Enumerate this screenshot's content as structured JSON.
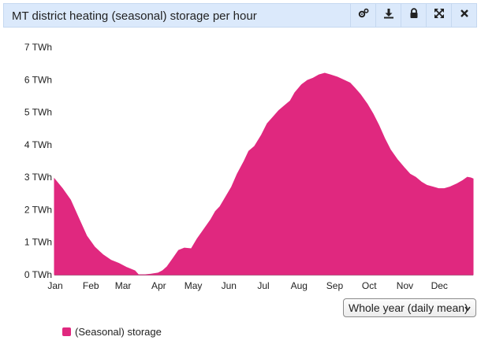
{
  "panel": {
    "title": "MT district heating (seasonal) storage per hour",
    "tools": [
      {
        "name": "settings-icon"
      },
      {
        "name": "download-icon"
      },
      {
        "name": "lock-icon"
      },
      {
        "name": "expand-icon"
      },
      {
        "name": "close-icon"
      }
    ]
  },
  "controls": {
    "period_select": {
      "selected": "Whole year (daily mean)"
    }
  },
  "colors": {
    "series": "#e0287f",
    "header_bg": "#dbe9fb"
  },
  "chart_data": {
    "type": "area",
    "title": "MT district heating (seasonal) storage per hour",
    "ylabel": "",
    "xlabel": "",
    "y_unit": "TWh",
    "ylim": [
      0,
      7
    ],
    "y_ticks": [
      "0 TWh",
      "1 TWh",
      "2 TWh",
      "3 TWh",
      "4 TWh",
      "5 TWh",
      "6 TWh",
      "7 TWh"
    ],
    "x_ticks": [
      "Jan",
      "Feb",
      "Mar",
      "Apr",
      "May",
      "Jun",
      "Jul",
      "Aug",
      "Sep",
      "Oct",
      "Nov",
      "Dec"
    ],
    "xlim": [
      1,
      365
    ],
    "grid": false,
    "legend_position": "bottom-left",
    "series": [
      {
        "name": "(Seasonal) storage",
        "x": [
          1,
          8,
          15,
          22,
          29,
          36,
          43,
          50,
          57,
          64,
          71,
          74,
          80,
          85,
          91,
          95,
          99,
          104,
          109,
          114,
          120,
          125,
          130,
          133,
          137,
          141,
          145,
          150,
          155,
          160,
          166,
          170,
          175,
          181,
          186,
          191,
          196,
          201,
          206,
          210,
          216,
          221,
          226,
          231,
          236,
          241,
          247,
          252,
          258,
          262,
          267,
          273,
          278,
          283,
          288,
          293,
          299,
          305,
          310,
          315,
          320,
          325,
          330,
          335,
          340,
          345,
          351,
          356,
          360,
          363,
          365
        ],
        "values": [
          2.95,
          2.65,
          2.3,
          1.75,
          1.2,
          0.85,
          0.62,
          0.45,
          0.35,
          0.22,
          0.12,
          0.0,
          0.0,
          0.02,
          0.05,
          0.12,
          0.25,
          0.5,
          0.75,
          0.82,
          0.8,
          1.1,
          1.35,
          1.5,
          1.7,
          1.95,
          2.1,
          2.4,
          2.7,
          3.1,
          3.5,
          3.8,
          3.95,
          4.3,
          4.65,
          4.85,
          5.05,
          5.2,
          5.35,
          5.6,
          5.85,
          5.98,
          6.05,
          6.15,
          6.2,
          6.15,
          6.08,
          6.0,
          5.9,
          5.75,
          5.55,
          5.25,
          4.95,
          4.6,
          4.2,
          3.85,
          3.55,
          3.3,
          3.1,
          3.0,
          2.85,
          2.75,
          2.7,
          2.65,
          2.65,
          2.7,
          2.8,
          2.9,
          3.0,
          2.98,
          2.95
        ]
      }
    ]
  }
}
